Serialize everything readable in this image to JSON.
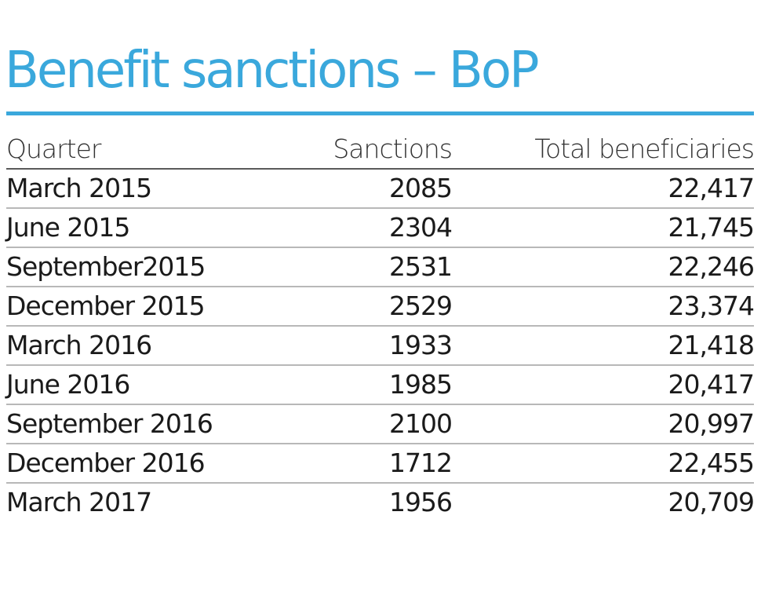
{
  "chart_data": {
    "type": "table",
    "title": "Benefit sanctions – BoP",
    "columns": [
      "Quarter",
      "Sanctions",
      "Total beneficiaries"
    ],
    "rows": [
      {
        "quarter": "March 2015",
        "sanctions": 2085,
        "total": "22,417"
      },
      {
        "quarter": "June 2015",
        "sanctions": 2304,
        "total": "21,745"
      },
      {
        "quarter": "September2015",
        "sanctions": 2531,
        "total": "22,246"
      },
      {
        "quarter": "December 2015",
        "sanctions": 2529,
        "total": "23,374"
      },
      {
        "quarter": "March 2016",
        "sanctions": 1933,
        "total": "21,418"
      },
      {
        "quarter": "June 2016",
        "sanctions": 1985,
        "total": "20,417"
      },
      {
        "quarter": "September 2016",
        "sanctions": 2100,
        "total": "20,997"
      },
      {
        "quarter": "December 2016",
        "sanctions": 1712,
        "total": "22,455"
      },
      {
        "quarter": "March 2017",
        "sanctions": 1956,
        "total": "20,709"
      }
    ]
  },
  "colors": {
    "accent": "#3aa8dc",
    "text": "#1a1a1a",
    "rule": "#b8b8b8"
  }
}
